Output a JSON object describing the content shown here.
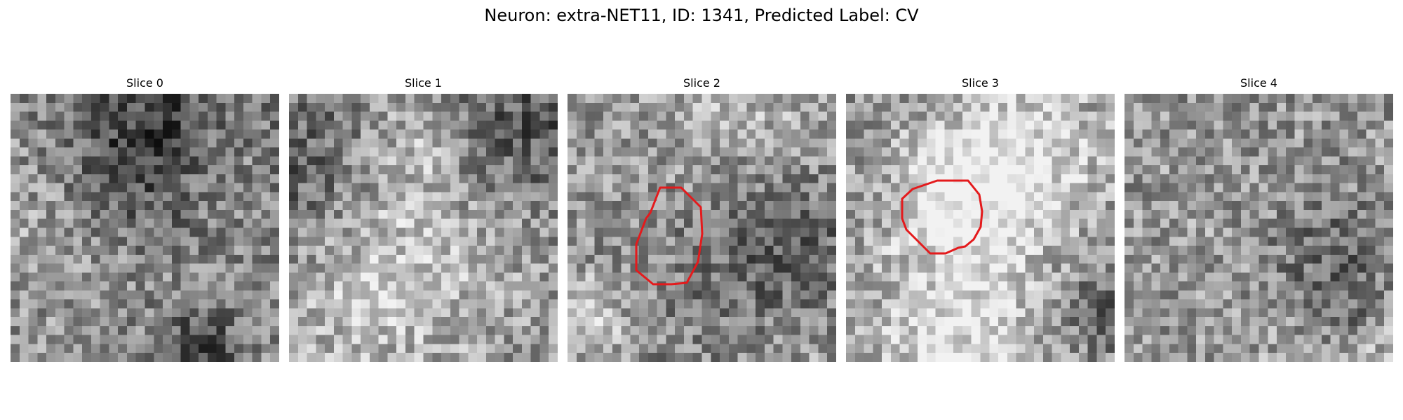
{
  "figure": {
    "title": "Neuron: extra-NET11, ID: 1341, Predicted Label: CV"
  },
  "colors": {
    "background": "#ffffff",
    "mask_outline": "#e41a1c",
    "text": "#000000"
  },
  "panels": [
    {
      "title": "Slice 0",
      "has_mask": false,
      "image": "grayscale-microscopy-slice"
    },
    {
      "title": "Slice 1",
      "has_mask": false,
      "image": "grayscale-microscopy-slice"
    },
    {
      "title": "Slice 2",
      "has_mask": true,
      "image": "grayscale-microscopy-slice",
      "mask": "red-octagon-outline"
    },
    {
      "title": "Slice 3",
      "has_mask": true,
      "image": "grayscale-microscopy-slice",
      "mask": "red-octagon-outline"
    },
    {
      "title": "Slice 4",
      "has_mask": false,
      "image": "grayscale-microscopy-slice"
    }
  ]
}
